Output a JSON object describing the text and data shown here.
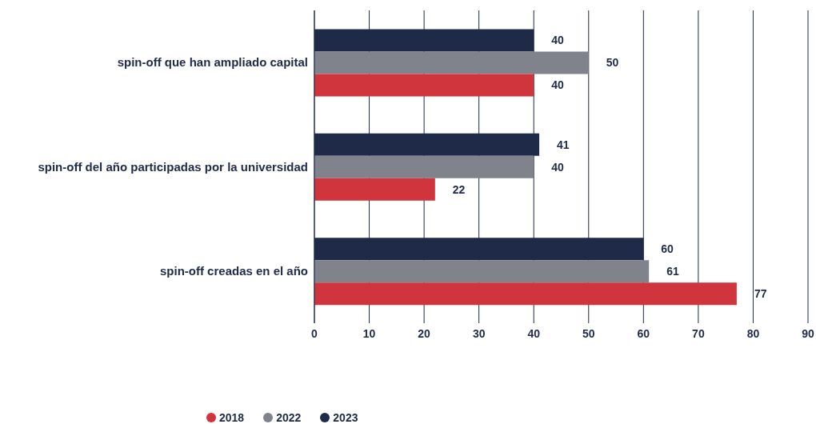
{
  "chart_data": {
    "type": "bar",
    "orientation": "horizontal",
    "categories": [
      "spin-off que han ampliado capital",
      "spin-off del año participadas por la universidad",
      "spin-off creadas en el año"
    ],
    "series": [
      {
        "name": "2018",
        "color": "#d0343c",
        "values": [
          40,
          22,
          77
        ]
      },
      {
        "name": "2022",
        "color": "#80838b",
        "values": [
          50,
          40,
          61
        ]
      },
      {
        "name": "2023",
        "color": "#1f2a48",
        "values": [
          40,
          41,
          60
        ]
      }
    ],
    "xlim": [
      0,
      90
    ],
    "xticks": [
      0,
      10,
      20,
      30,
      40,
      50,
      60,
      70,
      80,
      90
    ],
    "grid": "x",
    "legend": "bottom",
    "data_labels": true
  }
}
